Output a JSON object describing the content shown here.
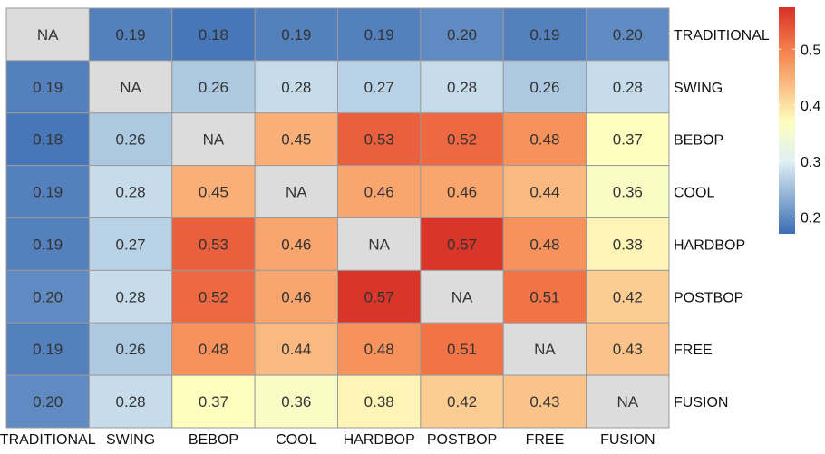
{
  "chart_data": {
    "type": "heatmap",
    "x_labels": [
      "TRADITIONAL",
      "SWING",
      "BEBOP",
      "COOL",
      "HARDBOP",
      "POSTBOP",
      "FREE",
      "FUSION"
    ],
    "y_labels": [
      "TRADITIONAL",
      "SWING",
      "BEBOP",
      "COOL",
      "HARDBOP",
      "POSTBOP",
      "FREE",
      "FUSION"
    ],
    "values": [
      [
        null,
        0.19,
        0.18,
        0.19,
        0.19,
        0.2,
        0.19,
        0.2
      ],
      [
        0.19,
        null,
        0.26,
        0.28,
        0.27,
        0.28,
        0.26,
        0.28
      ],
      [
        0.18,
        0.26,
        null,
        0.45,
        0.53,
        0.52,
        0.48,
        0.37
      ],
      [
        0.19,
        0.28,
        0.45,
        null,
        0.46,
        0.46,
        0.44,
        0.36
      ],
      [
        0.19,
        0.27,
        0.53,
        0.46,
        null,
        0.57,
        0.48,
        0.38
      ],
      [
        0.2,
        0.28,
        0.52,
        0.46,
        0.57,
        null,
        0.51,
        0.42
      ],
      [
        0.19,
        0.26,
        0.48,
        0.44,
        0.48,
        0.51,
        null,
        0.43
      ],
      [
        0.2,
        0.28,
        0.37,
        0.36,
        0.38,
        0.42,
        0.43,
        null
      ]
    ],
    "cell_labels": [
      [
        "NA",
        "0.19",
        "0.18",
        "0.19",
        "0.19",
        "0.20",
        "0.19",
        "0.20"
      ],
      [
        "0.19",
        "NA",
        "0.26",
        "0.28",
        "0.27",
        "0.28",
        "0.26",
        "0.28"
      ],
      [
        "0.18",
        "0.26",
        "NA",
        "0.45",
        "0.53",
        "0.52",
        "0.48",
        "0.37"
      ],
      [
        "0.19",
        "0.28",
        "0.45",
        "NA",
        "0.46",
        "0.46",
        "0.44",
        "0.36"
      ],
      [
        "0.19",
        "0.27",
        "0.53",
        "0.46",
        "NA",
        "0.57",
        "0.48",
        "0.38"
      ],
      [
        "0.20",
        "0.28",
        "0.52",
        "0.46",
        "0.57",
        "NA",
        "0.51",
        "0.42"
      ],
      [
        "0.19",
        "0.26",
        "0.48",
        "0.44",
        "0.48",
        "0.51",
        "NA",
        "0.43"
      ],
      [
        "0.20",
        "0.28",
        "0.37",
        "0.36",
        "0.38",
        "0.42",
        "0.43",
        "NA"
      ]
    ],
    "na_color": "#dcdcdc",
    "color_scale": [
      "#3a6db3",
      "#e0f0f5",
      "#fefebe",
      "#f67e4b",
      "#d73027"
    ],
    "color_domain": [
      0.17,
      0.3,
      0.37,
      0.5,
      0.575
    ],
    "colorbar": {
      "range": [
        0.17,
        0.575
      ],
      "ticks": [
        0.2,
        0.3,
        0.4,
        0.5
      ],
      "tick_labels": [
        "0.2",
        "0.3",
        "0.4",
        "0.5"
      ]
    },
    "title": "",
    "xlabel": "",
    "ylabel": "",
    "legend_placement": "right"
  }
}
